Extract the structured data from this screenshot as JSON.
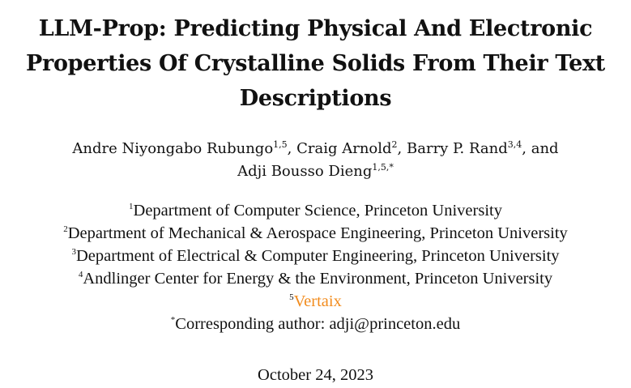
{
  "title": {
    "line1": "LLM-Prop: Predicting Physical And Electronic",
    "line2": "Properties Of Crystalline Solids From Their Text",
    "line3": "Descriptions"
  },
  "authors": {
    "a1_name": "Andre Niyongabo Rubungo",
    "a1_sup": "1,5",
    "sep1": ", ",
    "a2_name": "Craig Arnold",
    "a2_sup": "2",
    "sep2": ", ",
    "a3_name": "Barry P. Rand",
    "a3_sup": "3,4",
    "sep3": ", and",
    "a4_name": "Adji Bousso Dieng",
    "a4_sup": "1,5,*"
  },
  "affiliations": [
    {
      "sup": "1",
      "text": "Department of Computer Science, Princeton University"
    },
    {
      "sup": "2",
      "text": "Department of Mechanical & Aerospace Engineering, Princeton University"
    },
    {
      "sup": "3",
      "text": "Department of Electrical & Computer Engineering, Princeton University"
    },
    {
      "sup": "4",
      "text": "Andlinger Center for Energy & the Environment, Princeton University"
    },
    {
      "sup": "5",
      "text": "Vertaix"
    },
    {
      "sup": "*",
      "text": "Corresponding author: adji@princeton.edu"
    }
  ],
  "date": "October 24, 2023",
  "colors": {
    "text": "#111111",
    "link": "#f28c1e"
  }
}
